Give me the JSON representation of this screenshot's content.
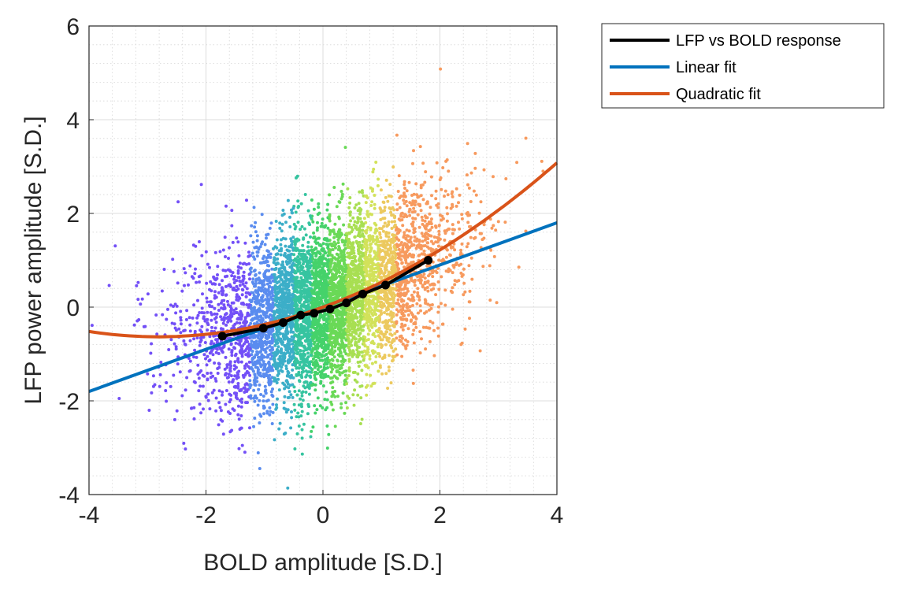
{
  "chart_data": {
    "type": "scatter",
    "xlabel": "BOLD amplitude [S.D.]",
    "ylabel": "LFP power amplitude [S.D.]",
    "xlim": [
      -4,
      4
    ],
    "ylim": [
      -4,
      6
    ],
    "xticks": [
      "-4",
      "-2",
      "0",
      "2",
      "4"
    ],
    "yticks": [
      "-4",
      "-2",
      "0",
      "2",
      "4",
      "6"
    ],
    "grid": true,
    "minor_grid": true,
    "legend": {
      "placement": "outside-top-right",
      "entries": [
        {
          "label": "LFP vs BOLD response",
          "color": "#000000"
        },
        {
          "label": "Linear fit",
          "color": "#0072BD"
        },
        {
          "label": "Quadratic fit",
          "color": "#D95319"
        }
      ]
    },
    "scatter_bins": [
      {
        "x_range": [
          -4.0,
          -1.25
        ],
        "color": "#7350F7"
      },
      {
        "x_range": [
          -1.25,
          -0.85
        ],
        "color": "#5A8CEF"
      },
      {
        "x_range": [
          -0.85,
          -0.5
        ],
        "color": "#3CAEC8"
      },
      {
        "x_range": [
          -0.5,
          -0.2
        ],
        "color": "#36C4A0"
      },
      {
        "x_range": [
          -0.2,
          0.1
        ],
        "color": "#45D26A"
      },
      {
        "x_range": [
          0.1,
          0.4
        ],
        "color": "#6AD957"
      },
      {
        "x_range": [
          0.4,
          0.7
        ],
        "color": "#A8DF52"
      },
      {
        "x_range": [
          0.7,
          0.95
        ],
        "color": "#D2E25A"
      },
      {
        "x_range": [
          0.95,
          1.25
        ],
        "color": "#ECC95E"
      },
      {
        "x_range": [
          1.25,
          4.0
        ],
        "color": "#F79A5E"
      }
    ],
    "series": [
      {
        "name": "LFP vs BOLD response",
        "color": "#000000",
        "x": [
          -1.72,
          -1.02,
          -0.68,
          -0.38,
          -0.15,
          0.12,
          0.4,
          0.68,
          1.07,
          1.8
        ],
        "y": [
          -0.62,
          -0.45,
          -0.33,
          -0.17,
          -0.13,
          -0.04,
          0.09,
          0.28,
          0.47,
          1.0
        ]
      },
      {
        "name": "Linear fit",
        "color": "#0072BD",
        "x": [
          -4,
          4
        ],
        "y": [
          -1.8,
          1.8
        ]
      },
      {
        "name": "Quadratic fit",
        "color": "#D95319",
        "quadratic_coeffs": [
          0.08,
          0.45,
          0.0
        ],
        "x_range": [
          -4,
          4
        ]
      }
    ]
  }
}
